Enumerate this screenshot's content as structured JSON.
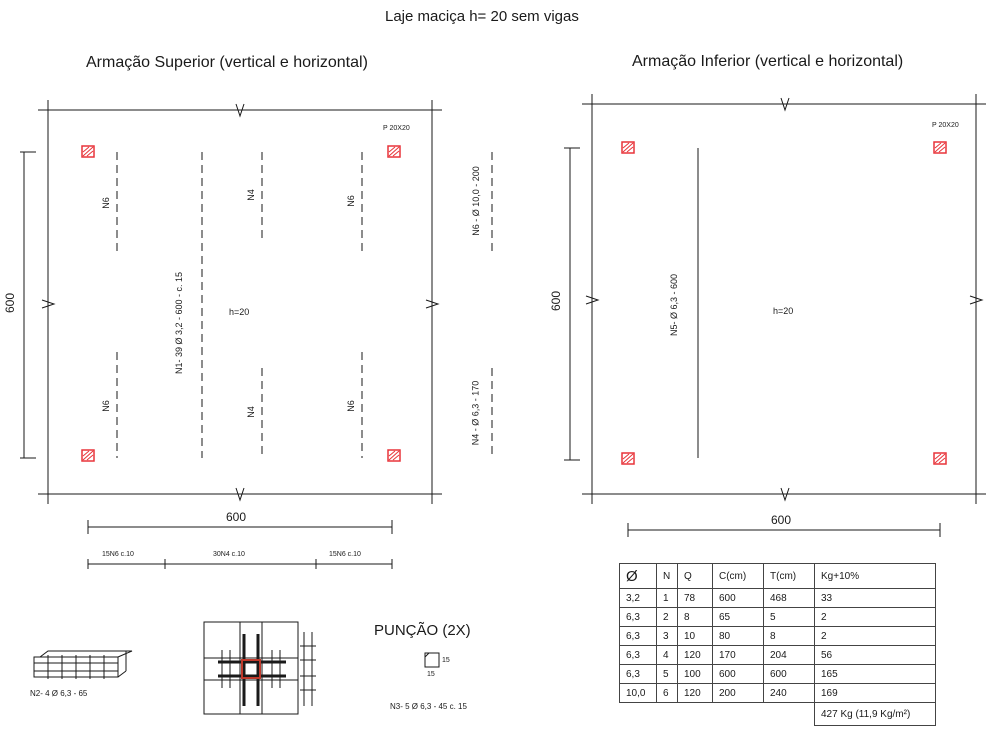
{
  "title": "Laje maciça h= 20 sem vigas",
  "left_plan": {
    "heading": "Armação Superior (vertical e horizontal)",
    "pillar_label": "P 20X20",
    "slab_label": "h=20",
    "dim_vertical": "600",
    "dim_horizontal": "600",
    "bar_labels": {
      "n6_top_left": "N6",
      "n4_top_mid": "N4",
      "n6_top_right": "N6",
      "n6_bot_left": "N6",
      "n4_bot_mid": "N4",
      "n6_bot_right": "N6",
      "n1": "N1- 39 Ø 3,2 - 600 - c. 15"
    },
    "side_labels": {
      "n6": "N6 - Ø 10,0 - 200",
      "n4": "N4 - Ø 6,3 - 170"
    },
    "distribution": {
      "left": "15N6 c.10",
      "center": "30N4 c.10",
      "right": "15N6 c.10"
    }
  },
  "right_plan": {
    "heading": "Armação Inferior (vertical e horizontal)",
    "pillar_label": "P 20X20",
    "slab_label": "h=20",
    "dim_vertical": "600",
    "dim_horizontal": "600",
    "n5_label": "N5- Ø 6,3 - 600"
  },
  "details": {
    "n2_label": "N2- 4 Ø 6,3 - 65",
    "puncao_title": "PUNÇÃO (2X)",
    "stirrup_dim_side": "15",
    "stirrup_dim_bottom": "15",
    "n3_label": "N3- 5 Ø 6,3 - 45 c. 15"
  },
  "table": {
    "headers": [
      "Ø",
      "N",
      "Q",
      "C(cm)",
      "T(cm)",
      "Kg+10%"
    ],
    "rows": [
      [
        "3,2",
        "1",
        "78",
        "600",
        "468",
        "33"
      ],
      [
        "6,3",
        "2",
        "8",
        "65",
        "5",
        "2"
      ],
      [
        "6,3",
        "3",
        "10",
        "80",
        "8",
        "2"
      ],
      [
        "6,3",
        "4",
        "120",
        "170",
        "204",
        "56"
      ],
      [
        "6,3",
        "5",
        "100",
        "600",
        "600",
        "165"
      ],
      [
        "10,0",
        "6",
        "120",
        "200",
        "240",
        "169"
      ]
    ],
    "total": "427 Kg (11,9 Kg/m²)"
  },
  "colors": {
    "pillar": "#e8343a",
    "line": "#1a1a1a"
  }
}
